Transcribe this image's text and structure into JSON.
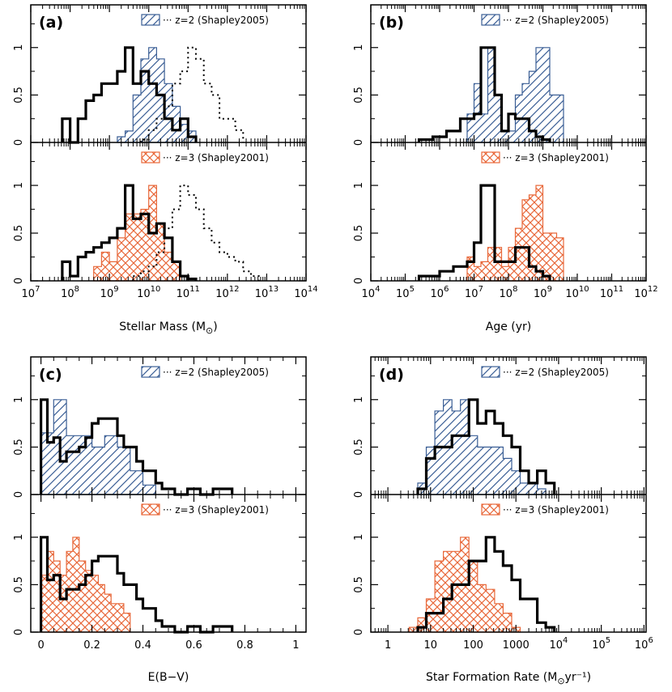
{
  "figure": {
    "description_panels": [
      "a",
      "b",
      "c",
      "d"
    ]
  },
  "colors": {
    "blue": "#3a5e95",
    "orange": "#e8683a",
    "black": "#000000"
  },
  "chart_data": [
    {
      "id": "a",
      "type": "bar",
      "panel_label": "(a)",
      "xlabel": "Stellar Mass (M",
      "xlabel_sub": "⊙",
      "xlabel_end": ")",
      "xscale": "log",
      "xlim": [
        7,
        14
      ],
      "ylim": [
        0,
        1.45
      ],
      "yticks": [
        {
          "v": 0,
          "label": "0"
        },
        {
          "v": 0.5,
          "label": "0.5"
        },
        {
          "v": 1,
          "label": "1"
        }
      ],
      "xticks": [
        {
          "base": "10",
          "exp": "7",
          "v": 7
        },
        {
          "base": "10",
          "exp": "8",
          "v": 8
        },
        {
          "base": "10",
          "exp": "9",
          "v": 9
        },
        {
          "base": "10",
          "exp": "10",
          "v": 10
        },
        {
          "base": "10",
          "exp": "11",
          "v": 11
        },
        {
          "base": "10",
          "exp": "12",
          "v": 12
        },
        {
          "base": "10",
          "exp": "13",
          "v": 13
        },
        {
          "base": "10",
          "exp": "14",
          "v": 14
        }
      ],
      "top": {
        "legend": "··· z=2 (Shapley2005)",
        "hatched": {
          "color": "blue",
          "pattern": "diag",
          "edges": [
            9.2,
            9.4,
            9.6,
            9.8,
            10,
            10.2,
            10.4,
            10.6,
            10.8,
            11,
            11.2
          ],
          "values": [
            0.06,
            0.12,
            0.5,
            0.88,
            1.0,
            0.88,
            0.62,
            0.38,
            0.19,
            0.12
          ]
        },
        "solid": {
          "edges": [
            7.8,
            8,
            8.2,
            8.4,
            8.6,
            8.8,
            9,
            9.2,
            9.4,
            9.6,
            9.8,
            10,
            10.2,
            10.4,
            10.6,
            10.8,
            11,
            11.2
          ],
          "values": [
            0.25,
            0.0,
            0.25,
            0.44,
            0.5,
            0.62,
            0.62,
            0.75,
            1.0,
            0.62,
            0.75,
            0.62,
            0.5,
            0.25,
            0.13,
            0.25,
            0.06
          ]
        },
        "dotted": {
          "edges": [
            9.8,
            10,
            10.2,
            10.4,
            10.6,
            10.8,
            11,
            11.2,
            11.4,
            11.6,
            11.8,
            12,
            12.2,
            12.4
          ],
          "values": [
            0.03,
            0.13,
            0.25,
            0.38,
            0.62,
            0.75,
            1.0,
            0.88,
            0.62,
            0.5,
            0.25,
            0.25,
            0.13
          ]
        }
      },
      "bottom": {
        "legend": "··· z=3 (Shapley2001)",
        "hatched": {
          "color": "orange",
          "pattern": "cross",
          "edges": [
            8.6,
            8.8,
            9,
            9.2,
            9.4,
            9.6,
            9.8,
            10,
            10.2,
            10.4,
            10.6,
            10.8
          ],
          "values": [
            0.15,
            0.3,
            0.2,
            0.45,
            0.7,
            0.7,
            0.75,
            1.0,
            0.6,
            0.3,
            0.2
          ]
        },
        "solid": {
          "edges": [
            7.8,
            8,
            8.2,
            8.4,
            8.6,
            8.8,
            9,
            9.2,
            9.4,
            9.6,
            9.8,
            10,
            10.2,
            10.4,
            10.6,
            10.8,
            11,
            11.2
          ],
          "values": [
            0.2,
            0.05,
            0.25,
            0.3,
            0.35,
            0.4,
            0.45,
            0.55,
            1.0,
            0.65,
            0.7,
            0.5,
            0.6,
            0.45,
            0.2,
            0.05,
            0.02
          ]
        },
        "dotted": {
          "edges": [
            9.6,
            9.8,
            10,
            10.2,
            10.4,
            10.6,
            10.8,
            11,
            11.2,
            11.4,
            11.6,
            11.8,
            12,
            12.2,
            12.4,
            12.6,
            12.8
          ],
          "values": [
            0.05,
            0.1,
            0.15,
            0.3,
            0.55,
            0.75,
            1.0,
            0.9,
            0.75,
            0.55,
            0.4,
            0.3,
            0.25,
            0.2,
            0.1,
            0.05
          ]
        }
      }
    },
    {
      "id": "b",
      "type": "bar",
      "panel_label": "(b)",
      "xlabel": "Age (yr)",
      "xlabel_sub": "",
      "xlabel_end": "",
      "xscale": "log",
      "xlim": [
        4,
        12
      ],
      "ylim": [
        0,
        1.45
      ],
      "yticks": [
        {
          "v": 0,
          "label": "0"
        },
        {
          "v": 0.5,
          "label": "0.5"
        },
        {
          "v": 1,
          "label": "1"
        }
      ],
      "xticks": [
        {
          "base": "10",
          "exp": "4",
          "v": 4
        },
        {
          "base": "10",
          "exp": "5",
          "v": 5
        },
        {
          "base": "10",
          "exp": "6",
          "v": 6
        },
        {
          "base": "10",
          "exp": "7",
          "v": 7
        },
        {
          "base": "10",
          "exp": "8",
          "v": 8
        },
        {
          "base": "10",
          "exp": "9",
          "v": 9
        },
        {
          "base": "10",
          "exp": "10",
          "v": 10
        },
        {
          "base": "10",
          "exp": "11",
          "v": 11
        },
        {
          "base": "10",
          "exp": "12",
          "v": 12
        }
      ],
      "top": {
        "legend": "··· z=2 (Shapley2005)",
        "hatched": {
          "color": "blue",
          "pattern": "diag",
          "edges": [
            6.8,
            7,
            7.2,
            7.4,
            7.6,
            7.8,
            8,
            8.2,
            8.4,
            8.6,
            8.8,
            9,
            9.2,
            9.4,
            9.6
          ],
          "values": [
            0.3,
            0.62,
            0.3,
            1.0,
            0.5,
            0.12,
            0.12,
            0.5,
            0.62,
            0.75,
            1.0,
            1.0,
            0.5,
            0.5
          ]
        },
        "solid": {
          "edges": [
            5.4,
            5.6,
            5.8,
            6,
            6.2,
            6.4,
            6.6,
            6.8,
            7,
            7.2,
            7.4,
            7.6,
            7.8,
            8,
            8.2,
            8.4,
            8.6,
            8.8,
            9,
            9.2
          ],
          "values": [
            0.03,
            0.03,
            0.06,
            0.06,
            0.12,
            0.12,
            0.25,
            0.25,
            0.3,
            1.0,
            1.0,
            0.5,
            0.12,
            0.3,
            0.25,
            0.25,
            0.12,
            0.06,
            0.03
          ]
        }
      },
      "bottom": {
        "legend": "··· z=3 (Shapley2001)",
        "hatched": {
          "color": "orange",
          "pattern": "cross",
          "edges": [
            6.8,
            7,
            7.2,
            7.4,
            7.6,
            7.8,
            8,
            8.2,
            8.4,
            8.6,
            8.8,
            9,
            9.2,
            9.4,
            9.6
          ],
          "values": [
            0.25,
            0.15,
            0.2,
            0.35,
            0.35,
            0.15,
            0.35,
            0.55,
            0.85,
            0.9,
            1.0,
            0.5,
            0.5,
            0.45
          ]
        },
        "solid": {
          "edges": [
            5.4,
            5.6,
            5.8,
            6,
            6.2,
            6.4,
            6.6,
            6.8,
            7,
            7.2,
            7.4,
            7.6,
            7.8,
            8,
            8.2,
            8.4,
            8.6,
            8.8,
            9,
            9.2
          ],
          "values": [
            0.05,
            0.05,
            0.05,
            0.1,
            0.1,
            0.15,
            0.15,
            0.2,
            0.4,
            1.0,
            1.0,
            0.2,
            0.2,
            0.2,
            0.35,
            0.35,
            0.15,
            0.1,
            0.05
          ]
        }
      }
    },
    {
      "id": "c",
      "type": "bar",
      "panel_label": "(c)",
      "xlabel": "E(B−V)",
      "xlabel_sub": "",
      "xlabel_end": "",
      "xscale": "linear",
      "xlim": [
        -0.04,
        1.04
      ],
      "ylim": [
        0,
        1.45
      ],
      "yticks": [
        {
          "v": 0,
          "label": "0"
        },
        {
          "v": 0.5,
          "label": "0.5"
        },
        {
          "v": 1,
          "label": "1"
        }
      ],
      "xticks": [
        {
          "base": "0",
          "exp": "",
          "v": 0
        },
        {
          "base": "0.2",
          "exp": "",
          "v": 0.2
        },
        {
          "base": "0.4",
          "exp": "",
          "v": 0.4
        },
        {
          "base": "0.6",
          "exp": "",
          "v": 0.6
        },
        {
          "base": "0.8",
          "exp": "",
          "v": 0.8
        },
        {
          "base": "1",
          "exp": "",
          "v": 1
        }
      ],
      "top": {
        "legend": "··· z=2 (Shapley2005)",
        "hatched": {
          "color": "blue",
          "pattern": "diag",
          "edges": [
            0,
            0.05,
            0.1,
            0.15,
            0.2,
            0.25,
            0.3,
            0.35,
            0.4,
            0.45
          ],
          "values": [
            0.65,
            1.0,
            0.62,
            0.62,
            0.5,
            0.62,
            0.5,
            0.25,
            0.1
          ]
        },
        "solid": {
          "edges": [
            0,
            0.025,
            0.05,
            0.075,
            0.1,
            0.125,
            0.15,
            0.175,
            0.2,
            0.225,
            0.25,
            0.275,
            0.3,
            0.325,
            0.35,
            0.375,
            0.4,
            0.425,
            0.45,
            0.475,
            0.5,
            0.525,
            0.55,
            0.575,
            0.6,
            0.625,
            0.65,
            0.675,
            0.7,
            0.725,
            0.75
          ],
          "values": [
            1.0,
            0.55,
            0.6,
            0.35,
            0.45,
            0.45,
            0.5,
            0.6,
            0.75,
            0.8,
            0.8,
            0.8,
            0.62,
            0.5,
            0.5,
            0.35,
            0.25,
            0.25,
            0.12,
            0.06,
            0.06,
            0.0,
            0.0,
            0.06,
            0.06,
            0.0,
            0.0,
            0.06,
            0.06,
            0.06
          ]
        }
      },
      "bottom": {
        "legend": "··· z=3 (Shapley2001)",
        "hatched": {
          "color": "orange",
          "pattern": "cross",
          "edges": [
            0,
            0.025,
            0.05,
            0.075,
            0.1,
            0.125,
            0.15,
            0.175,
            0.2,
            0.225,
            0.25,
            0.275,
            0.3,
            0.325,
            0.35
          ],
          "values": [
            0.6,
            0.85,
            0.75,
            0.6,
            0.85,
            1.0,
            0.75,
            0.65,
            0.6,
            0.5,
            0.4,
            0.3,
            0.3,
            0.2
          ]
        },
        "solid": {
          "edges": [
            0,
            0.025,
            0.05,
            0.075,
            0.1,
            0.125,
            0.15,
            0.175,
            0.2,
            0.225,
            0.25,
            0.275,
            0.3,
            0.325,
            0.35,
            0.375,
            0.4,
            0.425,
            0.45,
            0.475,
            0.5,
            0.525,
            0.55,
            0.575,
            0.6,
            0.625,
            0.65,
            0.675,
            0.7,
            0.725,
            0.75
          ],
          "values": [
            1.0,
            0.55,
            0.6,
            0.35,
            0.45,
            0.45,
            0.5,
            0.6,
            0.75,
            0.8,
            0.8,
            0.8,
            0.62,
            0.5,
            0.5,
            0.35,
            0.25,
            0.25,
            0.12,
            0.06,
            0.06,
            0.0,
            0.0,
            0.06,
            0.06,
            0.0,
            0.0,
            0.06,
            0.06,
            0.06
          ]
        }
      }
    },
    {
      "id": "d",
      "type": "bar",
      "panel_label": "(d)",
      "xlabel": "Star Formation Rate (M",
      "xlabel_sub": "⊙",
      "xlabel_end": "yr⁻¹)",
      "xscale": "log",
      "xlim": [
        -0.4,
        6.05
      ],
      "ylim": [
        0,
        1.45
      ],
      "yticks": [
        {
          "v": 0,
          "label": "0"
        },
        {
          "v": 0.5,
          "label": "0.5"
        },
        {
          "v": 1,
          "label": "1"
        }
      ],
      "xticks": [
        {
          "base": "1",
          "exp": "",
          "v": 0
        },
        {
          "base": "10",
          "exp": "",
          "v": 1
        },
        {
          "base": "100",
          "exp": "",
          "v": 2
        },
        {
          "base": "1000",
          "exp": "",
          "v": 3
        },
        {
          "base": "10",
          "exp": "4",
          "v": 4
        },
        {
          "base": "10",
          "exp": "5",
          "v": 5
        },
        {
          "base": "10",
          "exp": "6",
          "v": 6
        }
      ],
      "top": {
        "legend": "··· z=2 (Shapley2005)",
        "hatched": {
          "color": "blue",
          "pattern": "diag",
          "edges": [
            0.7,
            0.9,
            1.1,
            1.3,
            1.5,
            1.7,
            1.9,
            2.1,
            2.3,
            2.5,
            2.7,
            2.9,
            3.1,
            3.3,
            3.5,
            3.7,
            3.9
          ],
          "values": [
            0.12,
            0.5,
            0.88,
            1.0,
            0.88,
            1.0,
            0.62,
            0.5,
            0.5,
            0.5,
            0.38,
            0.25,
            0.12,
            0.12,
            0.06,
            0.0
          ]
        },
        "solid": {
          "edges": [
            0.7,
            0.9,
            1.1,
            1.3,
            1.5,
            1.7,
            1.9,
            2.1,
            2.3,
            2.5,
            2.7,
            2.9,
            3.1,
            3.3,
            3.5,
            3.7,
            3.9
          ],
          "values": [
            0.06,
            0.38,
            0.5,
            0.5,
            0.62,
            0.62,
            1.0,
            0.75,
            0.88,
            0.75,
            0.62,
            0.5,
            0.25,
            0.12,
            0.25,
            0.12
          ]
        }
      },
      "bottom": {
        "legend": "··· z=3 (Shapley2001)",
        "hatched": {
          "color": "orange",
          "pattern": "cross",
          "edges": [
            0.5,
            0.7,
            0.9,
            1.1,
            1.3,
            1.5,
            1.7,
            1.9,
            2.1,
            2.3,
            2.5,
            2.7,
            2.9,
            3.1
          ],
          "values": [
            0.05,
            0.15,
            0.35,
            0.75,
            0.85,
            0.85,
            1.0,
            0.75,
            0.5,
            0.45,
            0.3,
            0.2,
            0.05
          ]
        },
        "solid": {
          "edges": [
            0.7,
            0.9,
            1.1,
            1.3,
            1.5,
            1.7,
            1.9,
            2.1,
            2.3,
            2.5,
            2.7,
            2.9,
            3.1,
            3.3,
            3.5,
            3.7,
            3.9
          ],
          "values": [
            0.05,
            0.2,
            0.2,
            0.35,
            0.5,
            0.5,
            0.75,
            0.75,
            1.0,
            0.85,
            0.7,
            0.55,
            0.35,
            0.35,
            0.1,
            0.05
          ]
        }
      }
    }
  ]
}
